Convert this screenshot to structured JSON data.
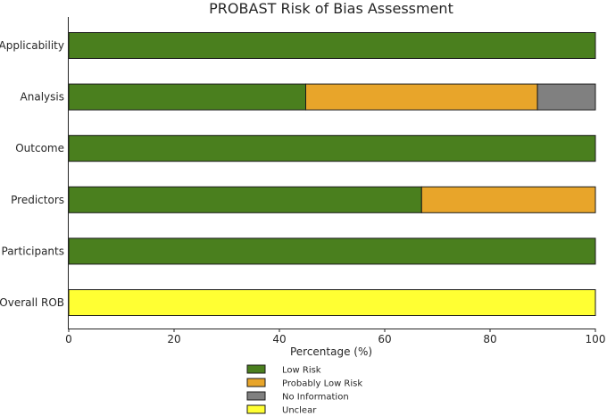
{
  "chart_data": {
    "type": "bar",
    "orientation": "horizontal",
    "stacked": true,
    "title": "PROBAST Risk of Bias Assessment",
    "xlabel": "Percentage (%)",
    "ylabel": "",
    "xlim": [
      0,
      100
    ],
    "xticks": [
      0,
      20,
      40,
      60,
      80,
      100
    ],
    "categories": [
      "Applicability",
      "Analysis",
      "Outcome",
      "Predictors",
      "Participants",
      "Overall ROB"
    ],
    "series": [
      {
        "name": "Low Risk",
        "color": "#4a7f1e",
        "values": [
          100,
          45,
          100,
          67,
          100,
          0
        ]
      },
      {
        "name": "Probably Low Risk",
        "color": "#e8a52a",
        "values": [
          0,
          44,
          0,
          33,
          0,
          0
        ]
      },
      {
        "name": "No Information",
        "color": "#808080",
        "values": [
          0,
          11,
          0,
          0,
          0,
          0
        ]
      },
      {
        "name": "Unclear",
        "color": "#ffff33",
        "values": [
          0,
          0,
          0,
          0,
          0,
          100
        ]
      }
    ],
    "legend_position": "bottom-center",
    "grid": false
  }
}
